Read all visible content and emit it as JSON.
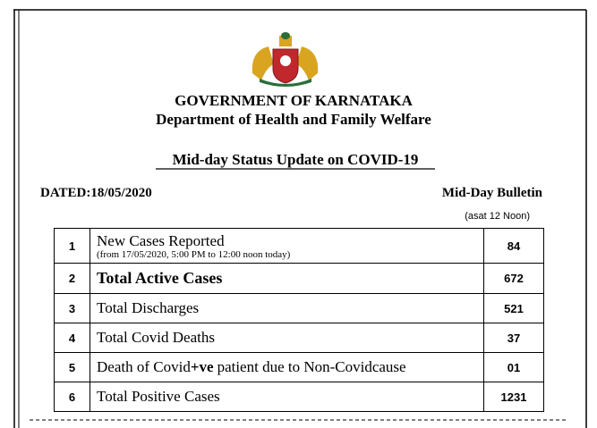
{
  "header": {
    "title": "GOVERNMENT OF KARNATAKA",
    "department": "Department of Health and Family Welfare",
    "heading": "Mid-day Status Update on COVID-19",
    "dated": "DATED:18/05/2020",
    "bulletin": "Mid-Day Bulletin",
    "asat": "(asat 12 Noon)"
  },
  "table": {
    "rows": [
      {
        "no": "1",
        "description": "New Cases Reported",
        "note": "(from 17/05/2020, 5:00 PM to 12:00 noon today)",
        "value": "84"
      },
      {
        "no": "2",
        "description": "Total Active Cases",
        "value": "672"
      },
      {
        "no": "3",
        "description": "Total Discharges",
        "value": "521"
      },
      {
        "no": "4",
        "description": "Total Covid Deaths",
        "value": "37"
      },
      {
        "no": "5",
        "description": [
          "Death of Covid",
          "+ve",
          "patient due to Non-Covidcause"
        ],
        "value": "01"
      },
      {
        "no": "6",
        "description": "Total Positive Cases",
        "value": "1231"
      }
    ]
  }
}
